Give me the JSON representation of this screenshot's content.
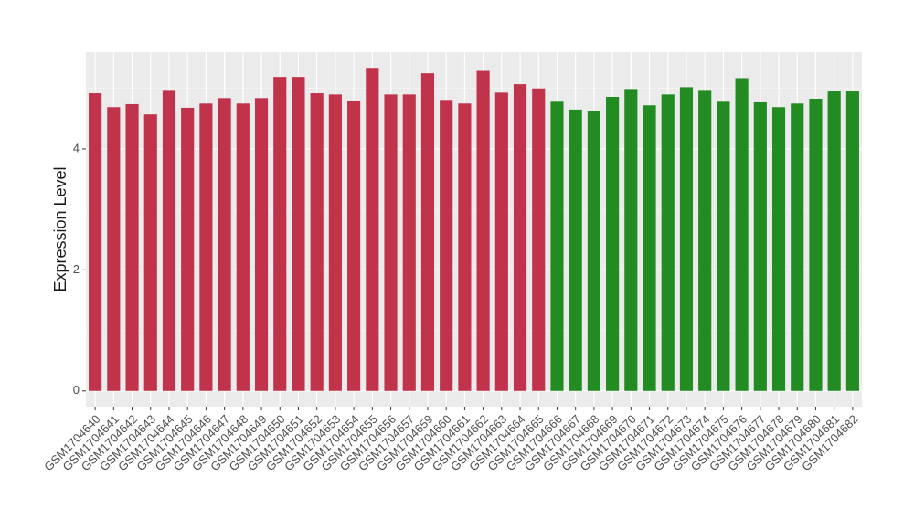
{
  "chart_data": {
    "type": "bar",
    "y_label": "Expression Level",
    "categories": [
      "GSM1704640",
      "GSM1704641",
      "GSM1704642",
      "GSM1704643",
      "GSM1704644",
      "GSM1704645",
      "GSM1704646",
      "GSM1704647",
      "GSM1704648",
      "GSM1704649",
      "GSM1704650",
      "GSM1704651",
      "GSM1704652",
      "GSM1704653",
      "GSM1704654",
      "GSM1704655",
      "GSM1704656",
      "GSM1704657",
      "GSM1704659",
      "GSM1704660",
      "GSM1704661",
      "GSM1704662",
      "GSM1704663",
      "GSM1704664",
      "GSM1704665",
      "GSM1704666",
      "GSM1704667",
      "GSM1704668",
      "GSM1704669",
      "GSM1704670",
      "GSM1704671",
      "GSM1704672",
      "GSM1704673",
      "GSM1704674",
      "GSM1704675",
      "GSM1704676",
      "GSM1704677",
      "GSM1704678",
      "GSM1704679",
      "GSM1704680",
      "GSM1704681",
      "GSM1704682"
    ],
    "values": [
      4.92,
      4.69,
      4.74,
      4.57,
      4.96,
      4.68,
      4.75,
      4.84,
      4.75,
      4.84,
      5.19,
      5.19,
      4.92,
      4.9,
      4.8,
      5.34,
      4.9,
      4.9,
      5.25,
      4.81,
      4.75,
      5.29,
      4.93,
      5.07,
      5.0,
      4.78,
      4.65,
      4.63,
      4.86,
      4.99,
      4.72,
      4.9,
      5.02,
      4.96,
      4.78,
      5.17,
      4.77,
      4.69,
      4.75,
      4.83,
      4.95,
      4.95
    ],
    "colors": [
      "#c0334b",
      "#c0334b",
      "#c0334b",
      "#c0334b",
      "#c0334b",
      "#c0334b",
      "#c0334b",
      "#c0334b",
      "#c0334b",
      "#c0334b",
      "#c0334b",
      "#c0334b",
      "#c0334b",
      "#c0334b",
      "#c0334b",
      "#c0334b",
      "#c0334b",
      "#c0334b",
      "#c0334b",
      "#c0334b",
      "#c0334b",
      "#c0334b",
      "#c0334b",
      "#c0334b",
      "#c0334b",
      "#228b22",
      "#228b22",
      "#228b22",
      "#228b22",
      "#228b22",
      "#228b22",
      "#228b22",
      "#228b22",
      "#228b22",
      "#228b22",
      "#228b22",
      "#228b22",
      "#228b22",
      "#228b22",
      "#228b22",
      "#228b22",
      "#228b22"
    ],
    "ylim": [
      -0.26,
      5.6
    ],
    "yticks": [
      0,
      2,
      4
    ],
    "minor_yticks": [
      1,
      3,
      5
    ],
    "grid": true
  }
}
